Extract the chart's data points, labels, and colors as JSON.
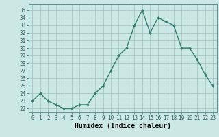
{
  "x": [
    0,
    1,
    2,
    3,
    4,
    5,
    6,
    7,
    8,
    9,
    10,
    11,
    12,
    13,
    14,
    15,
    16,
    17,
    18,
    19,
    20,
    21,
    22,
    23
  ],
  "y": [
    23,
    24,
    23,
    22.5,
    22,
    22,
    22.5,
    22.5,
    24,
    25,
    27,
    29,
    30,
    33,
    35,
    32,
    34,
    33.5,
    33,
    30,
    30,
    28.5,
    26.5,
    25
  ],
  "line_color": "#2e7d6e",
  "marker": "D",
  "marker_size": 2,
  "bg_color": "#cce8e4",
  "grid_color": "#9dbfbb",
  "xlabel": "Humidex (Indice chaleur)",
  "xlim": [
    -0.5,
    23.5
  ],
  "ylim": [
    21.5,
    35.8
  ],
  "yticks": [
    22,
    23,
    24,
    25,
    26,
    27,
    28,
    29,
    30,
    31,
    32,
    33,
    34,
    35
  ],
  "xticks": [
    0,
    1,
    2,
    3,
    4,
    5,
    6,
    7,
    8,
    9,
    10,
    11,
    12,
    13,
    14,
    15,
    16,
    17,
    18,
    19,
    20,
    21,
    22,
    23
  ],
  "tick_fontsize": 5.5,
  "label_fontsize": 7,
  "line_width": 1.0
}
